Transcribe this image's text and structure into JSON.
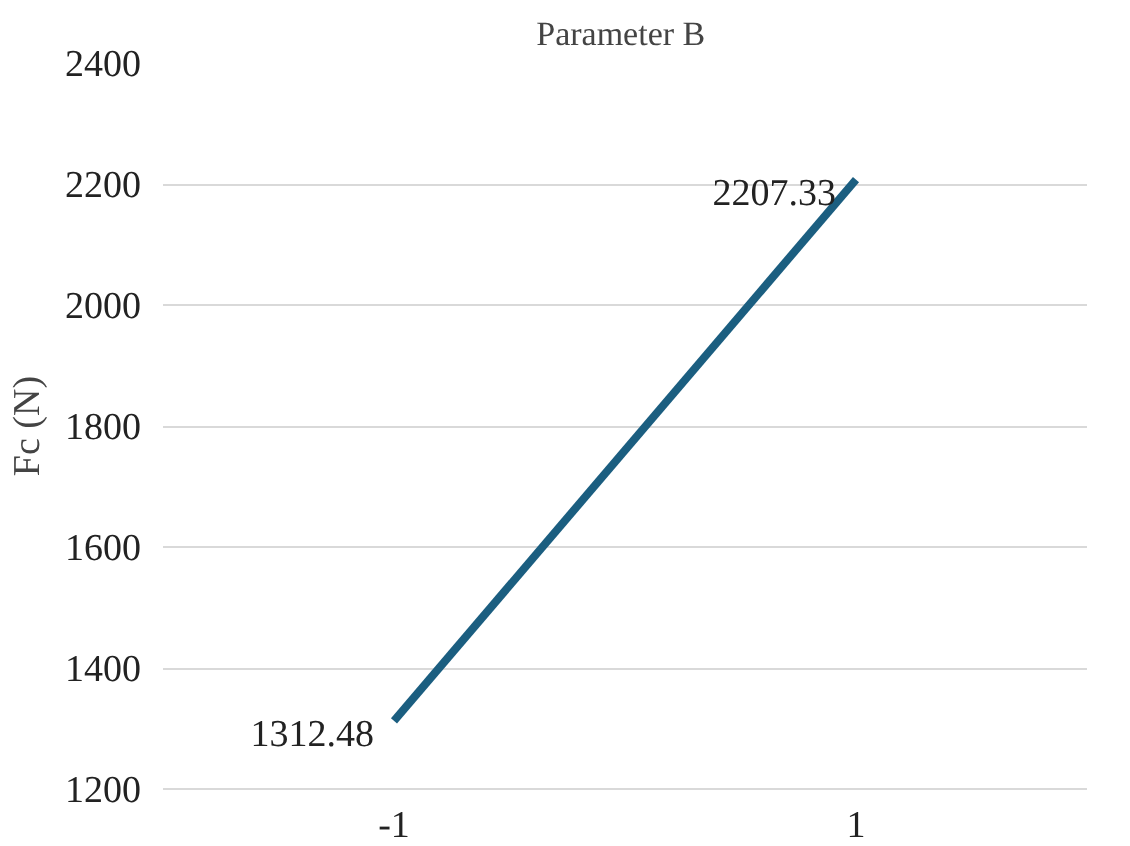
{
  "chart_data": {
    "type": "line",
    "title": "Parameter  B",
    "ylabel": "Fc (N)",
    "categories": [
      "-1",
      "1"
    ],
    "series": [
      {
        "color": "#1b5e80",
        "values": [
          1312.48,
          2207.33
        ]
      }
    ],
    "ylim": [
      1200,
      2400
    ],
    "yticks": [
      1200,
      1400,
      1600,
      1800,
      2000,
      2200,
      2400
    ],
    "grid": "y",
    "data_labels": true,
    "marker": "none",
    "line_style": "solid"
  }
}
